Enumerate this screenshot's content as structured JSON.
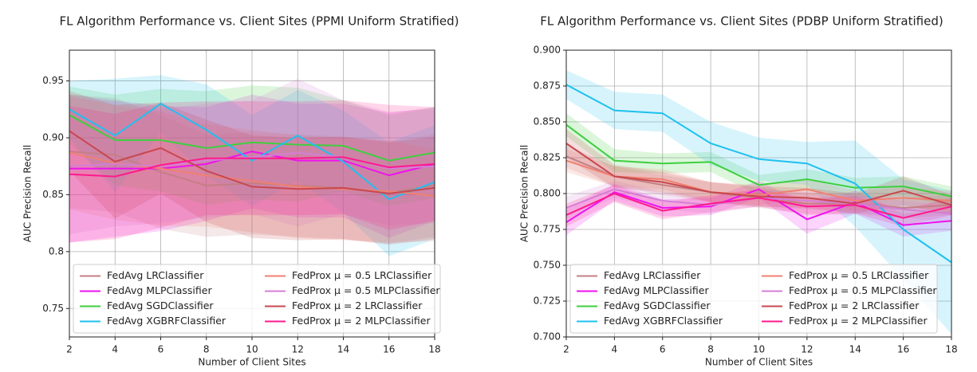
{
  "chart_data": [
    {
      "type": "line",
      "title": "FL Algorithm Performance vs. Client Sites (PPMI Uniform Stratified)",
      "x_label": "Number of Client Sites",
      "y_label": "AUC Precision Recall",
      "x": [
        2,
        4,
        6,
        8,
        10,
        12,
        14,
        16,
        18
      ],
      "xlim": [
        2,
        18
      ],
      "xticks": [
        2,
        4,
        6,
        8,
        10,
        12,
        14,
        16,
        18
      ],
      "ylim": [
        0.725,
        0.977
      ],
      "yticks": [
        0.75,
        0.8,
        {
          "value": 0.85,
          "label": "0.85"
        },
        {
          "value": 0.9,
          "label": "0.90"
        },
        0.95
      ],
      "grid": true,
      "legend": "lower left",
      "series": [
        {
          "name": "FedAvg LRClassifier",
          "color": "#c47f85",
          "values": [
            0.888,
            0.885,
            0.87,
            0.858,
            0.86,
            0.858,
            0.856,
            0.852,
            0.858
          ],
          "errors": [
            0.05,
            0.05,
            0.05,
            0.045,
            0.045,
            0.045,
            0.045,
            0.045,
            0.045
          ]
        },
        {
          "name": "FedAvg MLPClassifier",
          "color": "#ee12ee",
          "values": [
            0.873,
            0.873,
            0.873,
            0.877,
            0.888,
            0.88,
            0.88,
            0.867,
            0.877
          ],
          "errors": [
            0.065,
            0.06,
            0.055,
            0.05,
            0.05,
            0.05,
            0.05,
            0.055,
            0.05
          ]
        },
        {
          "name": "FedAvg SGDClassifier",
          "color": "#3ecf3e",
          "values": [
            0.92,
            0.898,
            0.898,
            0.891,
            0.896,
            0.894,
            0.893,
            0.88,
            0.887
          ],
          "errors": [
            0.025,
            0.04,
            0.045,
            0.05,
            0.05,
            0.05,
            0.04,
            0.04,
            0.04
          ]
        },
        {
          "name": "FedAvg XGBRFClassifier",
          "color": "#1fc0f0",
          "values": [
            0.925,
            0.902,
            0.93,
            0.907,
            0.88,
            0.902,
            0.879,
            0.846,
            0.861
          ],
          "errors": [
            0.025,
            0.05,
            0.025,
            0.04,
            0.04,
            0.04,
            0.045,
            0.05,
            0.05
          ]
        },
        {
          "name": "FedProx μ = 0.5 LRClassifier",
          "color": "#f08070",
          "values": [
            0.887,
            0.878,
            0.873,
            0.867,
            0.862,
            0.857,
            0.855,
            0.853,
            0.849
          ],
          "errors": [
            0.05,
            0.05,
            0.05,
            0.045,
            0.045,
            0.045,
            0.045,
            0.045,
            0.04
          ]
        },
        {
          "name": "FedProx μ = 0.5 MLPClassifier",
          "color": "#d47fd4",
          "values": [
            0.875,
            0.877,
            0.875,
            0.88,
            0.883,
            0.887,
            0.883,
            0.873,
            0.875
          ],
          "errors": [
            0.06,
            0.055,
            0.05,
            0.05,
            0.05,
            0.065,
            0.05,
            0.05,
            0.05
          ]
        },
        {
          "name": "FedProx μ = 2 LRClassifier",
          "color": "#c8484f",
          "values": [
            0.906,
            0.879,
            0.891,
            0.871,
            0.857,
            0.855,
            0.856,
            0.851,
            0.856
          ],
          "errors": [
            0.035,
            0.05,
            0.04,
            0.045,
            0.045,
            0.045,
            0.045,
            0.045,
            0.045
          ]
        },
        {
          "name": "FedProx μ = 2 MLPClassifier",
          "color": "#ff1a8c",
          "values": [
            0.868,
            0.866,
            0.876,
            0.882,
            0.882,
            0.882,
            0.883,
            0.874,
            0.877
          ],
          "errors": [
            0.06,
            0.055,
            0.055,
            0.05,
            0.05,
            0.05,
            0.05,
            0.055,
            0.05
          ]
        }
      ]
    },
    {
      "type": "line",
      "title": "FL Algorithm Performance vs. Client Sites (PDBP Uniform Stratified)",
      "x_label": "Number of Client Sites",
      "y_label": "AUC Precision Recall",
      "x": [
        2,
        4,
        6,
        8,
        10,
        12,
        14,
        16,
        18
      ],
      "xlim": [
        2,
        18
      ],
      "xticks": [
        2,
        4,
        6,
        8,
        10,
        12,
        14,
        16,
        18
      ],
      "ylim": [
        0.7,
        0.9
      ],
      "yticks": [
        {
          "value": 0.7,
          "label": "0.700"
        },
        0.725,
        {
          "value": 0.75,
          "label": "0.750"
        },
        0.775,
        {
          "value": 0.8,
          "label": "0.800"
        },
        0.825,
        {
          "value": 0.85,
          "label": "0.850"
        },
        0.875,
        {
          "value": 0.9,
          "label": "0.900"
        }
      ],
      "grid": true,
      "legend": "lower left",
      "series": [
        {
          "name": "FedAvg LRClassifier",
          "color": "#c47f85",
          "values": [
            0.826,
            0.812,
            0.806,
            0.801,
            0.797,
            0.793,
            0.793,
            0.79,
            0.792
          ],
          "errors": [
            0.008,
            0.007,
            0.007,
            0.007,
            0.007,
            0.007,
            0.007,
            0.007,
            0.007
          ]
        },
        {
          "name": "FedAvg MLPClassifier",
          "color": "#ee12ee",
          "values": [
            0.78,
            0.801,
            0.79,
            0.791,
            0.803,
            0.782,
            0.794,
            0.778,
            0.781
          ],
          "errors": [
            0.009,
            0.006,
            0.006,
            0.006,
            0.006,
            0.01,
            0.008,
            0.008,
            0.007
          ]
        },
        {
          "name": "FedAvg SGDClassifier",
          "color": "#3ecf3e",
          "values": [
            0.848,
            0.823,
            0.821,
            0.822,
            0.806,
            0.81,
            0.804,
            0.805,
            0.798
          ],
          "errors": [
            0.008,
            0.008,
            0.007,
            0.007,
            0.007,
            0.007,
            0.007,
            0.007,
            0.007
          ]
        },
        {
          "name": "FedAvg XGBRFClassifier",
          "color": "#1fc0f0",
          "values": [
            0.876,
            0.858,
            0.856,
            0.835,
            0.824,
            0.821,
            0.807,
            0.775,
            0.752
          ],
          "errors": [
            0.01,
            0.013,
            0.013,
            0.015,
            0.015,
            0.015,
            0.03,
            0.035,
            0.05
          ]
        },
        {
          "name": "FedProx μ = 0.5 LRClassifier",
          "color": "#f08070",
          "values": [
            0.823,
            0.812,
            0.81,
            0.801,
            0.799,
            0.803,
            0.795,
            0.797,
            0.795
          ],
          "errors": [
            0.008,
            0.007,
            0.007,
            0.007,
            0.007,
            0.007,
            0.007,
            0.007,
            0.007
          ]
        },
        {
          "name": "FedProx μ = 0.5 MLPClassifier",
          "color": "#d47fd4",
          "values": [
            0.79,
            0.803,
            0.795,
            0.792,
            0.797,
            0.795,
            0.793,
            0.789,
            0.786
          ],
          "errors": [
            0.008,
            0.006,
            0.006,
            0.006,
            0.006,
            0.006,
            0.006,
            0.006,
            0.006
          ]
        },
        {
          "name": "FedProx μ = 2 LRClassifier",
          "color": "#c8484f",
          "values": [
            0.835,
            0.812,
            0.808,
            0.801,
            0.798,
            0.797,
            0.793,
            0.802,
            0.792
          ],
          "errors": [
            0.01,
            0.008,
            0.007,
            0.007,
            0.007,
            0.007,
            0.007,
            0.01,
            0.007
          ]
        },
        {
          "name": "FedProx μ = 2 MLPClassifier",
          "color": "#ff1a8c",
          "values": [
            0.785,
            0.8,
            0.788,
            0.793,
            0.797,
            0.791,
            0.792,
            0.783,
            0.791
          ],
          "errors": [
            0.008,
            0.006,
            0.006,
            0.006,
            0.006,
            0.006,
            0.006,
            0.006,
            0.006
          ]
        }
      ]
    }
  ]
}
